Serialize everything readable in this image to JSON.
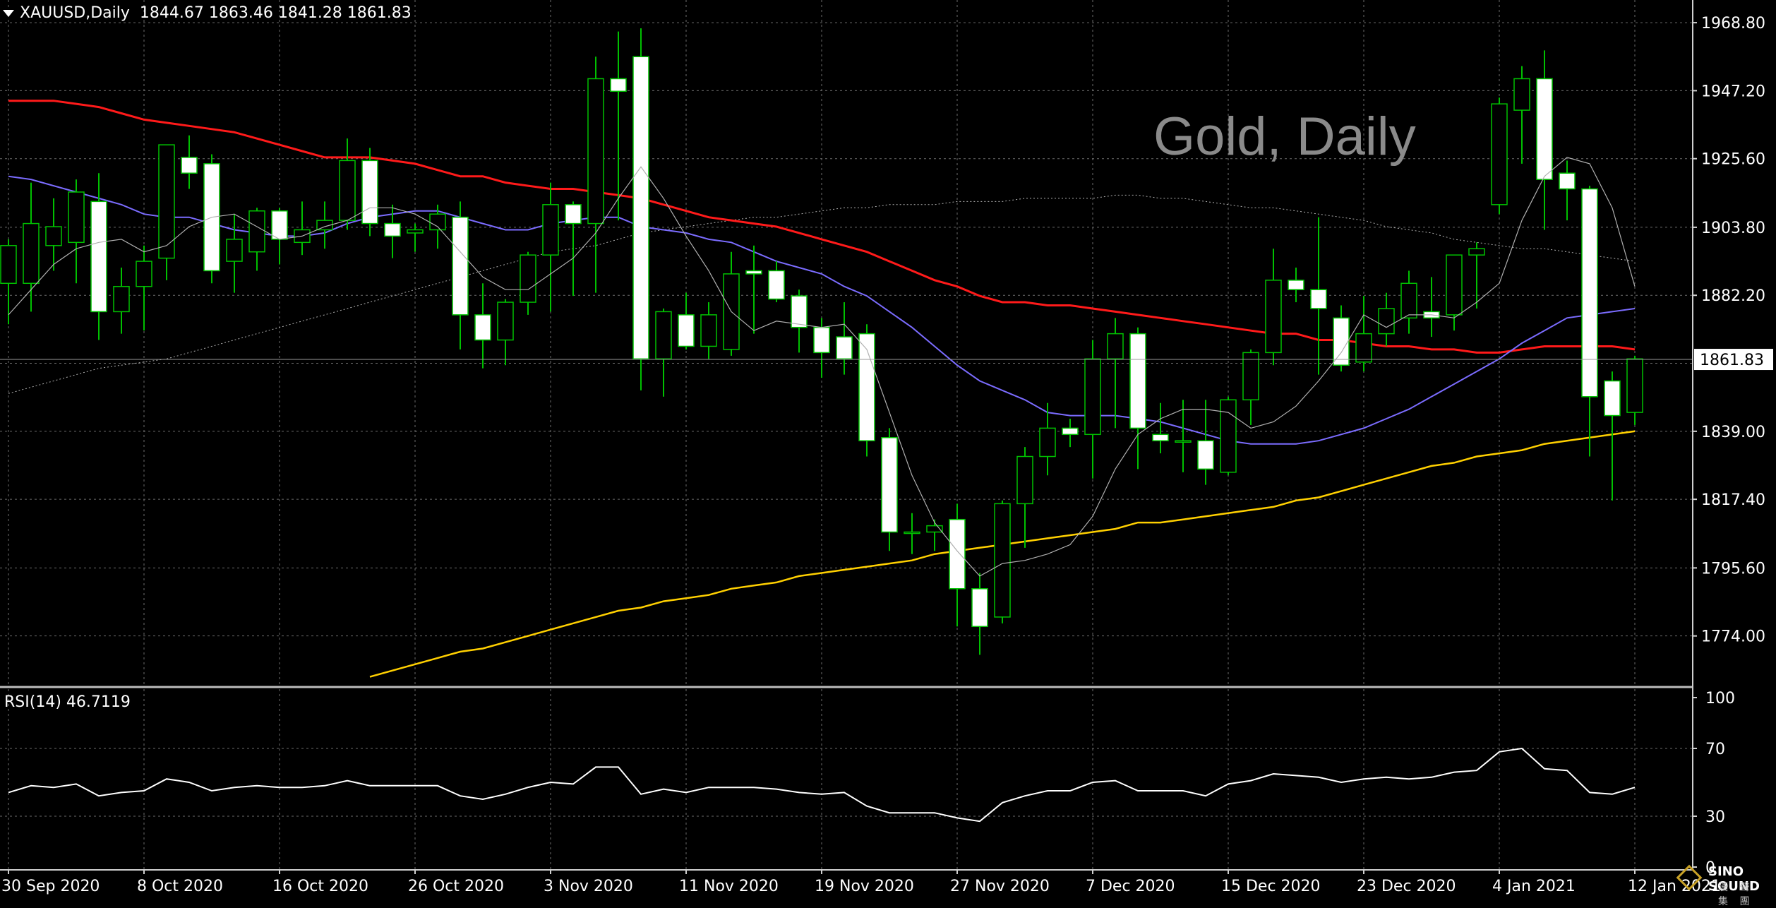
{
  "header": {
    "symbol": "XAUUSD,Daily",
    "ohlc": "1844.67 1863.46 1841.28 1861.83"
  },
  "watermark": "Gold, Daily",
  "rsi_header": "RSI(14) 46.7119",
  "logo": {
    "brand": "SINO SOUND",
    "sub": "漢 聲 集 團"
  },
  "colors": {
    "background": "#000000",
    "grid": "#6b6b6b",
    "bull_candle": "#000000",
    "bear_candle": "#ffffff",
    "wick": "#00c000",
    "ma_red": "#ff1a1a",
    "ma_blue": "#7b6cff",
    "ma_yellow": "#ffd000",
    "ma_thin": "#b0b0b0",
    "ma_dotted": "#b0b0b0",
    "rsi_line": "#ffffff",
    "axis_text": "#ffffff",
    "price_label_bg": "#ffffff"
  },
  "chart_data": [
    {
      "type": "candlestick",
      "title": "XAUUSD,Daily",
      "grid": true,
      "last_price": 1861.83,
      "last_price_label": "1861.83",
      "ylim": [
        1758,
        1976
      ],
      "y_ticks": [
        "1968.80",
        "1947.20",
        "1925.60",
        "1903.80",
        "1882.20",
        "1861.83",
        "1839.00",
        "1817.40",
        "1795.60",
        "1774.00"
      ],
      "y_tick_values": [
        1968.8,
        1947.2,
        1925.6,
        1903.8,
        1882.2,
        1860.6,
        1839.0,
        1817.4,
        1795.6,
        1774.0
      ],
      "x_labels": [
        "30 Sep 2020",
        "8 Oct 2020",
        "16 Oct 2020",
        "26 Oct 2020",
        "3 Nov 2020",
        "11 Nov 2020",
        "19 Nov 2020",
        "27 Nov 2020",
        "7 Dec 2020",
        "15 Dec 2020",
        "23 Dec 2020",
        "4 Jan 2021",
        "12 Jan 2021"
      ],
      "x_label_index": [
        0,
        6,
        12,
        18,
        24,
        30,
        36,
        42,
        48,
        54,
        60,
        66,
        72
      ],
      "candles": [
        {
          "o": 1886,
          "h": 1900,
          "l": 1873,
          "c": 1898
        },
        {
          "o": 1886,
          "h": 1918,
          "l": 1877,
          "c": 1905
        },
        {
          "o": 1898,
          "h": 1913,
          "l": 1890,
          "c": 1904
        },
        {
          "o": 1899,
          "h": 1919,
          "l": 1886,
          "c": 1915
        },
        {
          "o": 1912,
          "h": 1921,
          "l": 1868,
          "c": 1877
        },
        {
          "o": 1877,
          "h": 1891,
          "l": 1870,
          "c": 1885
        },
        {
          "o": 1885,
          "h": 1898,
          "l": 1871,
          "c": 1893
        },
        {
          "o": 1894,
          "h": 1930,
          "l": 1887,
          "c": 1930
        },
        {
          "o": 1926,
          "h": 1933,
          "l": 1916,
          "c": 1921
        },
        {
          "o": 1924,
          "h": 1927,
          "l": 1886,
          "c": 1890
        },
        {
          "o": 1893,
          "h": 1908,
          "l": 1883,
          "c": 1900
        },
        {
          "o": 1896,
          "h": 1910,
          "l": 1890,
          "c": 1909
        },
        {
          "o": 1909,
          "h": 1910,
          "l": 1892,
          "c": 1900
        },
        {
          "o": 1899,
          "h": 1912,
          "l": 1895,
          "c": 1903
        },
        {
          "o": 1903,
          "h": 1912,
          "l": 1897,
          "c": 1906
        },
        {
          "o": 1906,
          "h": 1932,
          "l": 1903,
          "c": 1925
        },
        {
          "o": 1925,
          "h": 1929,
          "l": 1901,
          "c": 1905
        },
        {
          "o": 1905,
          "h": 1911,
          "l": 1894,
          "c": 1901
        },
        {
          "o": 1902,
          "h": 1905,
          "l": 1896,
          "c": 1903
        },
        {
          "o": 1903,
          "h": 1911,
          "l": 1897,
          "c": 1908
        },
        {
          "o": 1907,
          "h": 1912,
          "l": 1865,
          "c": 1876
        },
        {
          "o": 1876,
          "h": 1886,
          "l": 1859,
          "c": 1868
        },
        {
          "o": 1868,
          "h": 1881,
          "l": 1860,
          "c": 1880
        },
        {
          "o": 1880,
          "h": 1896,
          "l": 1876,
          "c": 1895
        },
        {
          "o": 1895,
          "h": 1918,
          "l": 1877,
          "c": 1911
        },
        {
          "o": 1911,
          "h": 1912,
          "l": 1882,
          "c": 1905
        },
        {
          "o": 1905,
          "h": 1958,
          "l": 1883,
          "c": 1951
        },
        {
          "o": 1951,
          "h": 1966,
          "l": 1906,
          "c": 1947
        },
        {
          "o": 1958,
          "h": 1967,
          "l": 1852,
          "c": 1862
        },
        {
          "o": 1862,
          "h": 1878,
          "l": 1850,
          "c": 1877
        },
        {
          "o": 1876,
          "h": 1883,
          "l": 1865,
          "c": 1866
        },
        {
          "o": 1866,
          "h": 1880,
          "l": 1862,
          "c": 1876
        },
        {
          "o": 1865,
          "h": 1896,
          "l": 1863,
          "c": 1889
        },
        {
          "o": 1890,
          "h": 1898,
          "l": 1870,
          "c": 1889
        },
        {
          "o": 1890,
          "h": 1893,
          "l": 1880,
          "c": 1881
        },
        {
          "o": 1882,
          "h": 1884,
          "l": 1864,
          "c": 1872
        },
        {
          "o": 1872,
          "h": 1875,
          "l": 1856,
          "c": 1864
        },
        {
          "o": 1869,
          "h": 1880,
          "l": 1857,
          "c": 1862
        },
        {
          "o": 1870,
          "h": 1873,
          "l": 1831,
          "c": 1836
        },
        {
          "o": 1837,
          "h": 1840,
          "l": 1801,
          "c": 1807
        },
        {
          "o": 1807,
          "h": 1813,
          "l": 1800,
          "c": 1807
        },
        {
          "o": 1807,
          "h": 1811,
          "l": 1801,
          "c": 1809
        },
        {
          "o": 1811,
          "h": 1816,
          "l": 1777,
          "c": 1789
        },
        {
          "o": 1789,
          "h": 1794,
          "l": 1768,
          "c": 1777
        },
        {
          "o": 1780,
          "h": 1817,
          "l": 1778,
          "c": 1816
        },
        {
          "o": 1816,
          "h": 1834,
          "l": 1802,
          "c": 1831
        },
        {
          "o": 1831,
          "h": 1848,
          "l": 1825,
          "c": 1840
        },
        {
          "o": 1840,
          "h": 1843,
          "l": 1834,
          "c": 1838
        },
        {
          "o": 1838,
          "h": 1868,
          "l": 1824,
          "c": 1862
        },
        {
          "o": 1862,
          "h": 1875,
          "l": 1840,
          "c": 1870
        },
        {
          "o": 1870,
          "h": 1872,
          "l": 1827,
          "c": 1840
        },
        {
          "o": 1838,
          "h": 1848,
          "l": 1832,
          "c": 1836
        },
        {
          "o": 1836,
          "h": 1849,
          "l": 1826,
          "c": 1836
        },
        {
          "o": 1836,
          "h": 1849,
          "l": 1822,
          "c": 1827
        },
        {
          "o": 1826,
          "h": 1850,
          "l": 1825,
          "c": 1849
        },
        {
          "o": 1849,
          "h": 1865,
          "l": 1841,
          "c": 1864
        },
        {
          "o": 1864,
          "h": 1897,
          "l": 1860,
          "c": 1887
        },
        {
          "o": 1887,
          "h": 1891,
          "l": 1880,
          "c": 1884
        },
        {
          "o": 1884,
          "h": 1907,
          "l": 1857,
          "c": 1878
        },
        {
          "o": 1875,
          "h": 1879,
          "l": 1858,
          "c": 1860
        },
        {
          "o": 1861,
          "h": 1882,
          "l": 1858,
          "c": 1870
        },
        {
          "o": 1870,
          "h": 1883,
          "l": 1866,
          "c": 1878
        },
        {
          "o": 1875,
          "h": 1890,
          "l": 1870,
          "c": 1886
        },
        {
          "o": 1877,
          "h": 1888,
          "l": 1869,
          "c": 1875
        },
        {
          "o": 1876,
          "h": 1894,
          "l": 1871,
          "c": 1895
        },
        {
          "o": 1895,
          "h": 1899,
          "l": 1878,
          "c": 1897
        },
        {
          "o": 1911,
          "h": 1945,
          "l": 1908,
          "c": 1943
        },
        {
          "o": 1941,
          "h": 1955,
          "l": 1924,
          "c": 1951
        },
        {
          "o": 1951,
          "h": 1960,
          "l": 1903,
          "c": 1919
        },
        {
          "o": 1921,
          "h": 1925,
          "l": 1906,
          "c": 1916
        },
        {
          "o": 1916,
          "h": 1917,
          "l": 1831,
          "c": 1850
        },
        {
          "o": 1855,
          "h": 1858,
          "l": 1817,
          "c": 1844
        },
        {
          "o": 1845,
          "h": 1863,
          "l": 1841,
          "c": 1862
        }
      ],
      "ma_red": [
        1944,
        1944,
        1944,
        1943,
        1942,
        1940,
        1938,
        1937,
        1936,
        1935,
        1934,
        1932,
        1930,
        1928,
        1926,
        1926,
        1926,
        1925,
        1924,
        1922,
        1920,
        1920,
        1918,
        1917,
        1916,
        1916,
        1915,
        1914,
        1913,
        1911,
        1909,
        1907,
        1906,
        1905,
        1904,
        1902,
        1900,
        1898,
        1896,
        1893,
        1890,
        1887,
        1885,
        1882,
        1880,
        1880,
        1879,
        1879,
        1878,
        1877,
        1876,
        1875,
        1874,
        1873,
        1872,
        1871,
        1870,
        1870,
        1868,
        1868,
        1867,
        1866,
        1866,
        1865,
        1865,
        1864,
        1864,
        1865,
        1866,
        1866,
        1866,
        1866,
        1865
      ],
      "ma_blue": [
        1920,
        1919,
        1917,
        1915,
        1913,
        1911,
        1908,
        1907,
        1907,
        1905,
        1903,
        1902,
        1901,
        1901,
        1902,
        1905,
        1907,
        1908,
        1909,
        1909,
        1907,
        1905,
        1903,
        1903,
        1905,
        1906,
        1907,
        1907,
        1904,
        1903,
        1902,
        1900,
        1899,
        1896,
        1893,
        1891,
        1889,
        1885,
        1882,
        1877,
        1872,
        1866,
        1860,
        1855,
        1852,
        1849,
        1845,
        1844,
        1844,
        1844,
        1843,
        1842,
        1840,
        1838,
        1836,
        1835,
        1835,
        1835,
        1836,
        1838,
        1840,
        1843,
        1846,
        1850,
        1854,
        1858,
        1862,
        1867,
        1871,
        1875,
        1876,
        1877,
        1878
      ],
      "ma_yellow": [
        null,
        null,
        null,
        null,
        null,
        null,
        null,
        null,
        null,
        null,
        null,
        null,
        null,
        null,
        null,
        null,
        1761,
        1763,
        1765,
        1767,
        1769,
        1770,
        1772,
        1774,
        1776,
        1778,
        1780,
        1782,
        1783,
        1785,
        1786,
        1787,
        1789,
        1790,
        1791,
        1793,
        1794,
        1795,
        1796,
        1797,
        1798,
        1800,
        1801,
        1802,
        1803,
        1804,
        1805,
        1806,
        1807,
        1808,
        1810,
        1810,
        1811,
        1812,
        1813,
        1814,
        1815,
        1817,
        1818,
        1820,
        1822,
        1824,
        1826,
        1828,
        1829,
        1831,
        1832,
        1833,
        1835,
        1836,
        1837,
        1838,
        1839
      ],
      "ma_thin": [
        1876,
        1884,
        1892,
        1897,
        1899,
        1900,
        1896,
        1898,
        1904,
        1907,
        1908,
        1904,
        1900,
        1901,
        1904,
        1906,
        1910,
        1910,
        1908,
        1904,
        1896,
        1888,
        1884,
        1884,
        1889,
        1894,
        1902,
        1913,
        1923,
        1913,
        1901,
        1890,
        1877,
        1871,
        1874,
        1873,
        1872,
        1873,
        1865,
        1845,
        1825,
        1810,
        1801,
        1793,
        1797,
        1798,
        1800,
        1803,
        1812,
        1827,
        1838,
        1843,
        1846,
        1846,
        1845,
        1840,
        1842,
        1847,
        1855,
        1864,
        1876,
        1872,
        1876,
        1876,
        1875,
        1880,
        1886,
        1906,
        1920,
        1926,
        1924,
        1910,
        1885
      ],
      "ma_dotted": [
        1851,
        1853,
        1855,
        1857,
        1859,
        1860,
        1861,
        1862,
        1864,
        1866,
        1868,
        1870,
        1872,
        1874,
        1876,
        1878,
        1880,
        1882,
        1884,
        1886,
        1888,
        1890,
        1892,
        1894,
        1896,
        1897,
        1898,
        1900,
        1902,
        1903,
        1904,
        1905,
        1906,
        1907,
        1907,
        1908,
        1909,
        1910,
        1910,
        1911,
        1911,
        1911,
        1912,
        1912,
        1912,
        1913,
        1913,
        1913,
        1913,
        1914,
        1914,
        1913,
        1913,
        1912,
        1911,
        1910,
        1910,
        1909,
        1908,
        1907,
        1906,
        1904,
        1903,
        1902,
        1900,
        1899,
        1898,
        1897,
        1897,
        1896,
        1895,
        1894,
        1893
      ]
    },
    {
      "type": "line",
      "title": "RSI(14) 46.7119",
      "ylim": [
        0,
        100
      ],
      "y_ticks": [
        "100",
        "70",
        "30",
        "0"
      ],
      "y_tick_values": [
        100,
        70,
        30,
        0
      ],
      "series": [
        {
          "name": "RSI(14)",
          "values": [
            44,
            48,
            47,
            49,
            42,
            44,
            45,
            52,
            50,
            45,
            47,
            48,
            47,
            47,
            48,
            51,
            48,
            48,
            48,
            48,
            42,
            40,
            43,
            47,
            50,
            49,
            59,
            59,
            43,
            46,
            44,
            47,
            47,
            47,
            46,
            44,
            43,
            44,
            36,
            32,
            32,
            32,
            29,
            27,
            38,
            42,
            45,
            45,
            50,
            51,
            45,
            45,
            45,
            42,
            49,
            51,
            55,
            54,
            53,
            50,
            52,
            53,
            52,
            53,
            56,
            57,
            68,
            70,
            58,
            57,
            44,
            43,
            47
          ]
        }
      ]
    }
  ]
}
